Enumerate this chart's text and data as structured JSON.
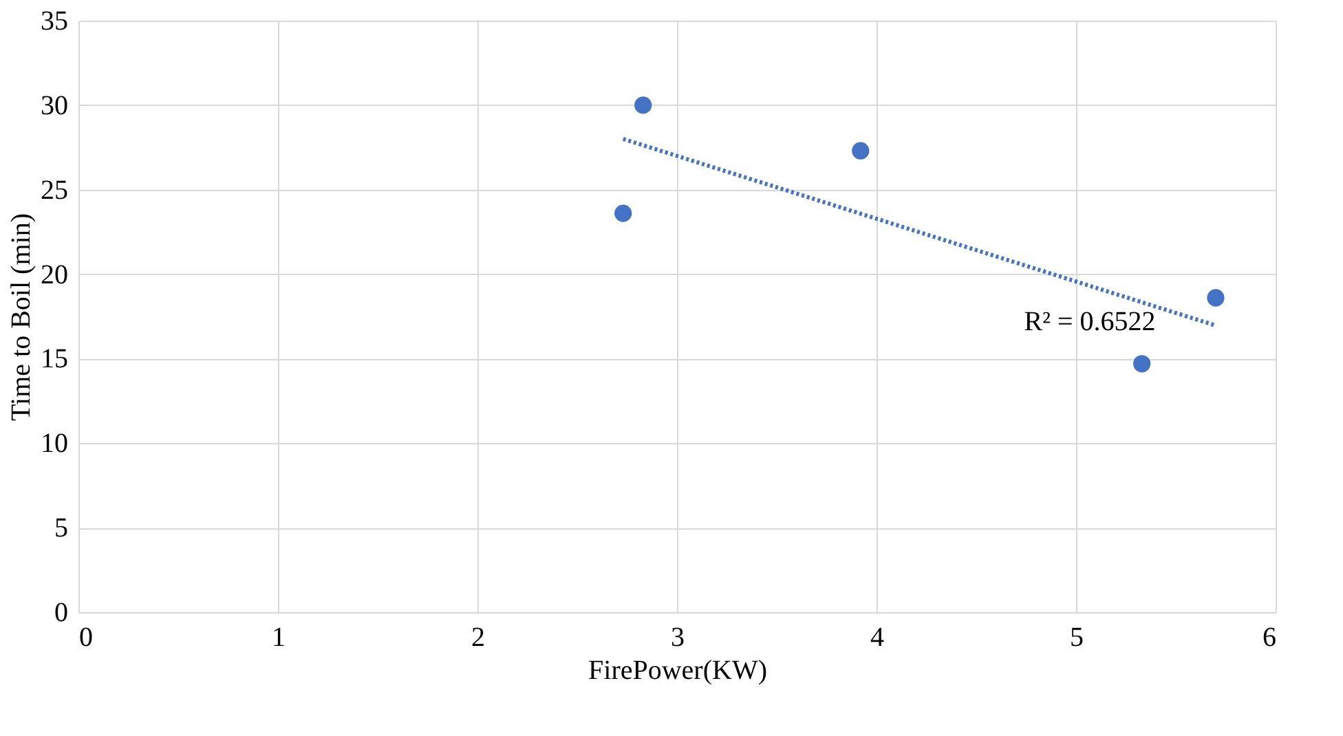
{
  "chart_data": {
    "type": "scatter",
    "xlabel": "FirePower(KW)",
    "ylabel": "Time to Boil (min)",
    "xlim": [
      0,
      6
    ],
    "xticks": [
      0,
      1,
      2,
      3,
      4,
      5,
      6
    ],
    "ylim": [
      0,
      35
    ],
    "yticks": [
      0,
      5,
      10,
      15,
      20,
      25,
      30,
      35
    ],
    "grid": true,
    "series": [
      {
        "marker": "circle",
        "color": "#4472c4",
        "x": [
          2.73,
          2.83,
          3.92,
          5.33,
          5.7
        ],
        "values": [
          23.6,
          30.0,
          27.3,
          14.7,
          18.6
        ]
      },
      {
        "type": "line",
        "color": "#4472c4",
        "line_style": "dotted",
        "x": [
          2.73,
          5.69
        ],
        "values": [
          28.0,
          17.0
        ]
      }
    ],
    "annotations": [
      "R² = 0.6522"
    ]
  }
}
